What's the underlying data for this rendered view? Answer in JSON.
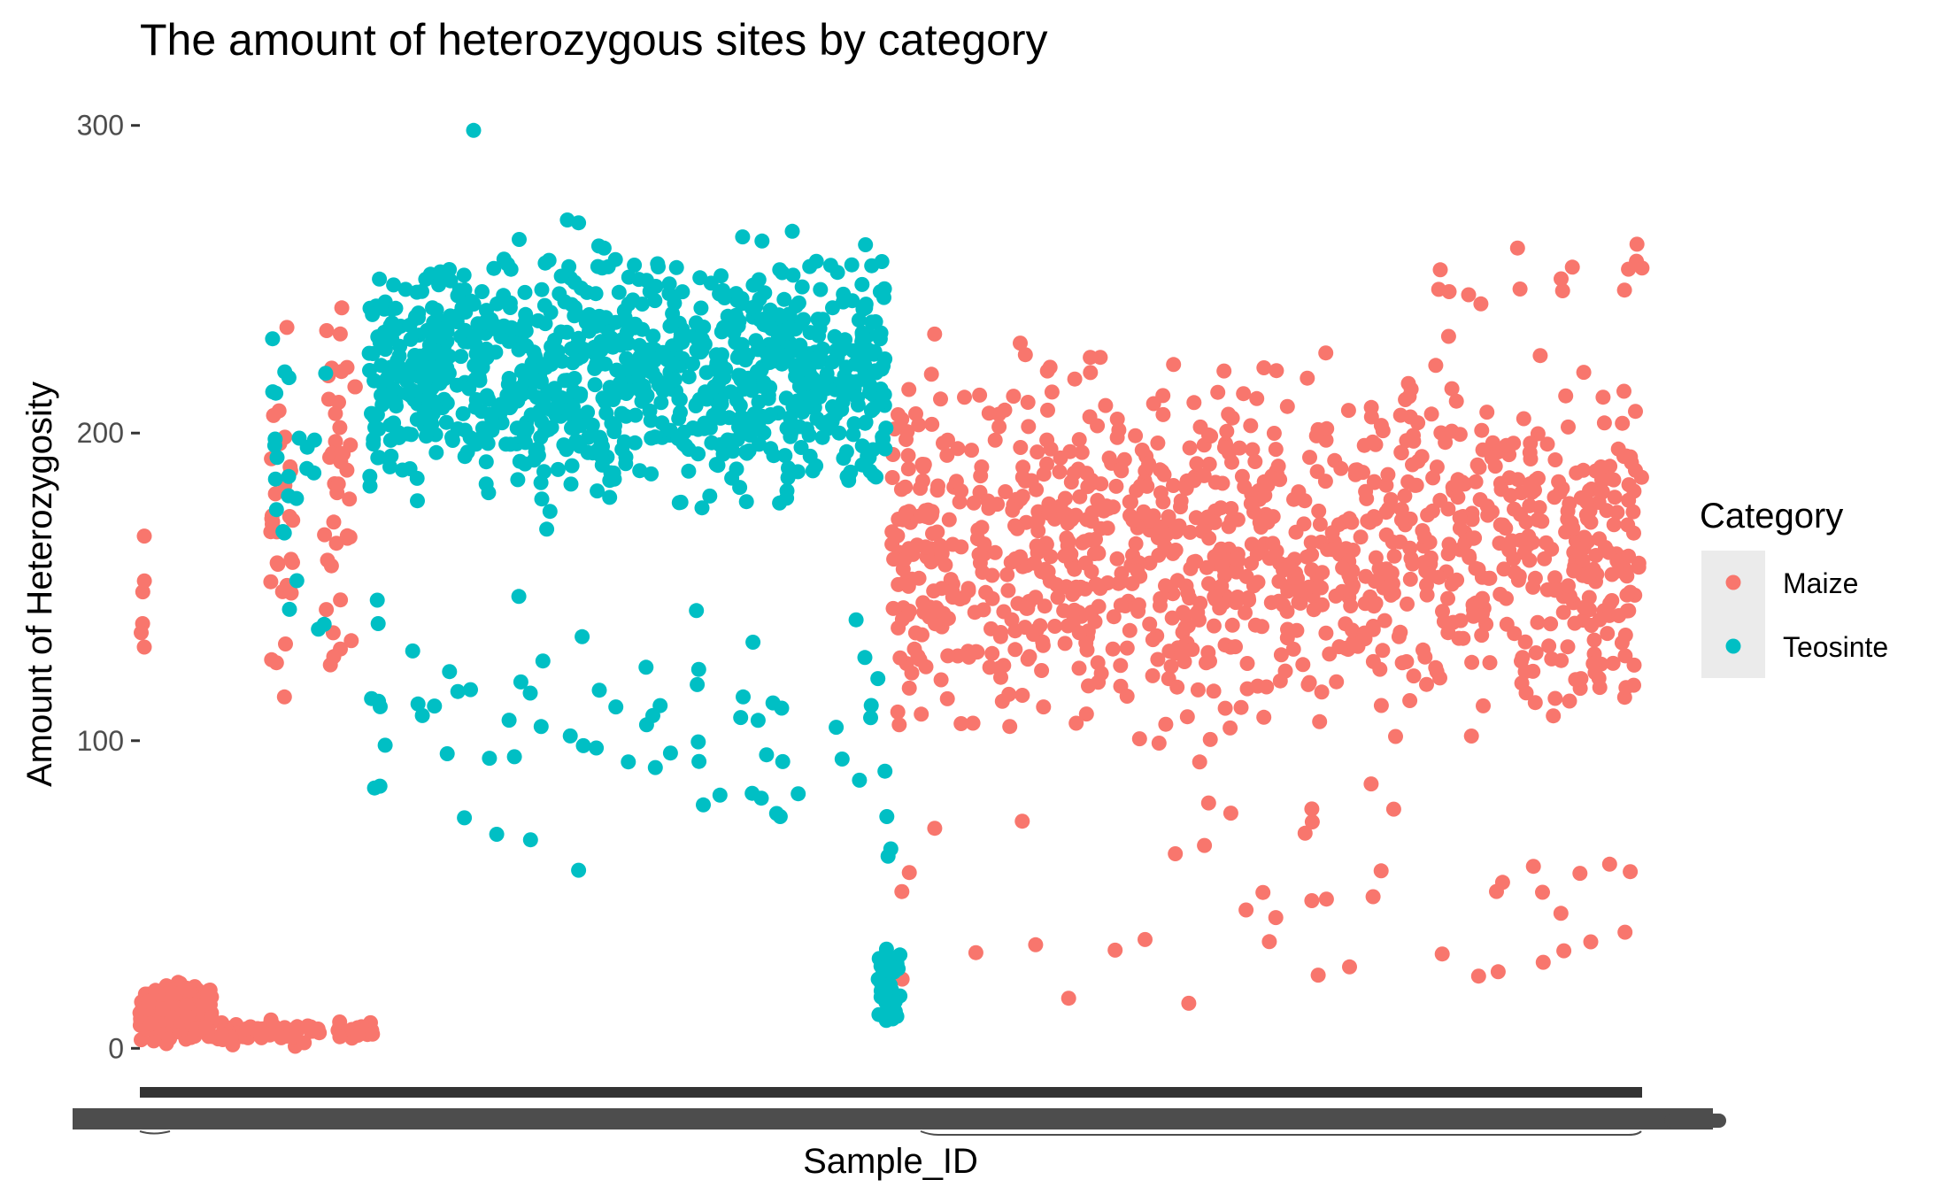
{
  "chart_data": {
    "type": "scatter",
    "title": "The amount of heterozygous sites by category",
    "xlabel": "Sample_ID",
    "ylabel": "Amount of Heterozygosity",
    "x_tick_labels": "dense overlapping sample ID labels (illegible)",
    "yticks": [
      0,
      100,
      200,
      300
    ],
    "ylim": [
      -12,
      312
    ],
    "grid": false,
    "legend": {
      "title": "Category",
      "placement": "right",
      "entries": [
        {
          "name": "Maize",
          "color": "#F8766D"
        },
        {
          "name": "Teosinte",
          "color": "#00BFC4"
        }
      ]
    },
    "series": [
      {
        "name": "Maize",
        "color": "#F8766D",
        "segments": [
          {
            "x_range": [
              0,
              80
            ],
            "y_range": [
              0,
              25
            ],
            "count": 200
          },
          {
            "x_range": [
              0,
              5
            ],
            "y_range": [
              78,
              185
            ],
            "count": 6
          },
          {
            "x_range": [
              80,
              200
            ],
            "y_range": [
              0,
              10
            ],
            "count": 60
          },
          {
            "x_range": [
              145,
              170
            ],
            "y_range": [
              100,
              245
            ],
            "count": 30
          },
          {
            "x_range": [
              205,
              240
            ],
            "y_range": [
              85,
              275
            ],
            "count": 40
          },
          {
            "x_range": [
              220,
              260
            ],
            "y_range": [
              0,
              10
            ],
            "count": 15
          },
          {
            "x_range": [
              835,
              1670
            ],
            "y_range": [
              85,
              240
            ],
            "count": 1100
          },
          {
            "x_range": [
              835,
              1670
            ],
            "y_range": [
              0,
              100
            ],
            "count": 45
          },
          {
            "x_range": [
              1400,
              1670
            ],
            "y_range": [
              230,
              270
            ],
            "count": 15
          }
        ]
      },
      {
        "name": "Teosinte",
        "color": "#00BFC4",
        "segments": [
          {
            "x_range": [
              145,
              210
            ],
            "y_range": [
              105,
              275
            ],
            "count": 25
          },
          {
            "x_range": [
              255,
              830
            ],
            "y_range": [
              165,
              275
            ],
            "count": 950
          },
          {
            "x_range": [
              255,
              830
            ],
            "y_range": [
              45,
              165
            ],
            "count": 70
          },
          {
            "x_range": [
              370,
              375
            ],
            "y_range": [
              298,
              300
            ],
            "count": 1
          },
          {
            "x_range": [
              820,
              845
            ],
            "y_range": [
              5,
              37
            ],
            "count": 45
          },
          {
            "x_range": [
              820,
              840
            ],
            "y_range": [
              58,
              85
            ],
            "count": 3
          }
        ]
      }
    ]
  }
}
